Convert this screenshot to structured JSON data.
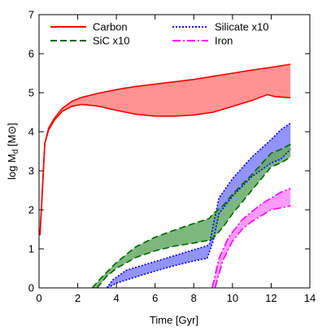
{
  "chart_data": {
    "type": "area",
    "xlabel": "Time [Gyr]",
    "ylabel_main": "log M",
    "ylabel_sub": "d",
    "ylabel_unit": " [M⊙]",
    "xlim": [
      0,
      14
    ],
    "ylim": [
      0,
      7
    ],
    "xticks": [
      0,
      2,
      4,
      6,
      8,
      10,
      12,
      14
    ],
    "yticks": [
      0,
      1,
      2,
      3,
      4,
      5,
      6,
      7
    ],
    "grid": false,
    "legend_placement": "top",
    "series": [
      {
        "name": "Carbon",
        "color": "#ff0000",
        "fill": "#ff8080",
        "line_style": "solid",
        "lower": [
          [
            0.05,
            1.35
          ],
          [
            0.3,
            3.7
          ],
          [
            0.5,
            4.05
          ],
          [
            0.8,
            4.3
          ],
          [
            1.2,
            4.52
          ],
          [
            1.7,
            4.65
          ],
          [
            2.2,
            4.7
          ],
          [
            3,
            4.66
          ],
          [
            4,
            4.55
          ],
          [
            5,
            4.45
          ],
          [
            6,
            4.4
          ],
          [
            7,
            4.4
          ],
          [
            8,
            4.43
          ],
          [
            9,
            4.5
          ],
          [
            10,
            4.65
          ],
          [
            11,
            4.8
          ],
          [
            11.8,
            4.95
          ],
          [
            12.2,
            4.9
          ],
          [
            13,
            4.87
          ]
        ],
        "upper": [
          [
            0.05,
            1.35
          ],
          [
            0.3,
            3.7
          ],
          [
            0.5,
            4.1
          ],
          [
            0.8,
            4.35
          ],
          [
            1.2,
            4.6
          ],
          [
            1.7,
            4.78
          ],
          [
            2.2,
            4.88
          ],
          [
            3,
            4.98
          ],
          [
            4,
            5.08
          ],
          [
            5,
            5.16
          ],
          [
            6,
            5.22
          ],
          [
            7,
            5.28
          ],
          [
            8,
            5.34
          ],
          [
            9,
            5.42
          ],
          [
            10,
            5.5
          ],
          [
            11,
            5.58
          ],
          [
            12,
            5.65
          ],
          [
            13,
            5.73
          ]
        ]
      },
      {
        "name": "Silicate x10",
        "color": "#0000ff",
        "fill": "#8080ff",
        "line_style": "dotted",
        "lower": [
          [
            3.55,
            0
          ],
          [
            4,
            0.12
          ],
          [
            5,
            0.28
          ],
          [
            6,
            0.43
          ],
          [
            7,
            0.57
          ],
          [
            8,
            0.69
          ],
          [
            8.7,
            0.76
          ],
          [
            9,
            1.2
          ],
          [
            9.3,
            1.9
          ],
          [
            10,
            2.35
          ],
          [
            11,
            2.85
          ],
          [
            12,
            3.2
          ],
          [
            12.5,
            3.3
          ],
          [
            13,
            3.55
          ]
        ],
        "upper": [
          [
            3.5,
            0
          ],
          [
            3.8,
            0.2
          ],
          [
            4.5,
            0.45
          ],
          [
            5.5,
            0.6
          ],
          [
            6.5,
            0.75
          ],
          [
            7.5,
            0.9
          ],
          [
            8.5,
            1.05
          ],
          [
            8.8,
            1.1
          ],
          [
            9,
            1.6
          ],
          [
            9.3,
            2.3
          ],
          [
            10,
            2.8
          ],
          [
            11,
            3.35
          ],
          [
            12,
            3.8
          ],
          [
            12.5,
            4.05
          ],
          [
            13,
            4.22
          ]
        ]
      },
      {
        "name": "SiC x10",
        "color": "#006400",
        "fill": "#66aa66",
        "line_style": "dashed",
        "lower": [
          [
            3,
            0
          ],
          [
            3.5,
            0.3
          ],
          [
            4,
            0.5
          ],
          [
            5,
            0.78
          ],
          [
            6,
            0.95
          ],
          [
            7,
            1.07
          ],
          [
            8,
            1.15
          ],
          [
            8.8,
            1.22
          ],
          [
            9,
            1.27
          ],
          [
            9.5,
            1.55
          ],
          [
            10,
            1.9
          ],
          [
            11,
            2.5
          ],
          [
            12,
            3.1
          ],
          [
            12.5,
            3.2
          ],
          [
            13,
            3.35
          ]
        ],
        "upper": [
          [
            2.75,
            0
          ],
          [
            3.2,
            0.25
          ],
          [
            4,
            0.65
          ],
          [
            5,
            1.05
          ],
          [
            6,
            1.3
          ],
          [
            7,
            1.48
          ],
          [
            8,
            1.65
          ],
          [
            8.8,
            1.78
          ],
          [
            9,
            1.9
          ],
          [
            9.5,
            2.1
          ],
          [
            10,
            2.4
          ],
          [
            11,
            2.9
          ],
          [
            12,
            3.45
          ],
          [
            12.5,
            3.55
          ],
          [
            13,
            3.68
          ]
        ]
      },
      {
        "name": "Iron",
        "color": "#ff00ff",
        "fill": "#ff88ff",
        "line_style": "dashdot",
        "lower": [
          [
            9.1,
            0
          ],
          [
            9.5,
            0.7
          ],
          [
            10,
            1.2
          ],
          [
            10.5,
            1.5
          ],
          [
            11,
            1.7
          ],
          [
            11.5,
            1.85
          ],
          [
            12,
            2
          ],
          [
            12.5,
            2.05
          ],
          [
            13,
            2.1
          ]
        ],
        "upper": [
          [
            8.95,
            0
          ],
          [
            9.3,
            0.75
          ],
          [
            9.8,
            1.3
          ],
          [
            10.5,
            1.75
          ],
          [
            11,
            1.95
          ],
          [
            11.5,
            2.15
          ],
          [
            12,
            2.3
          ],
          [
            12.5,
            2.45
          ],
          [
            13,
            2.55
          ]
        ]
      }
    ],
    "legend": [
      {
        "label": "Carbon",
        "series": "Carbon"
      },
      {
        "label": "Silicate x10",
        "series": "Silicate x10"
      },
      {
        "label": "SiC x10",
        "series": "SiC x10"
      },
      {
        "label": "Iron",
        "series": "Iron"
      }
    ]
  }
}
